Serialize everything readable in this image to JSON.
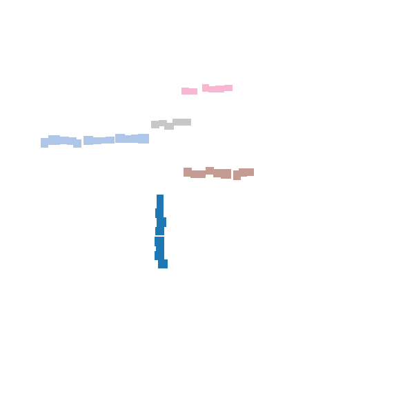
{
  "scene": {
    "background": "#ffffff",
    "strokes": [
      {
        "name": "pink-stroke",
        "color": "#f7b6d2"
      },
      {
        "name": "gray-stroke",
        "color": "#c7c7c7"
      },
      {
        "name": "light-blue-stroke",
        "color": "#aec7e8"
      },
      {
        "name": "brown-stroke",
        "color": "#c49c94"
      },
      {
        "name": "blue-stroke",
        "color": "#1f77b4"
      }
    ]
  }
}
